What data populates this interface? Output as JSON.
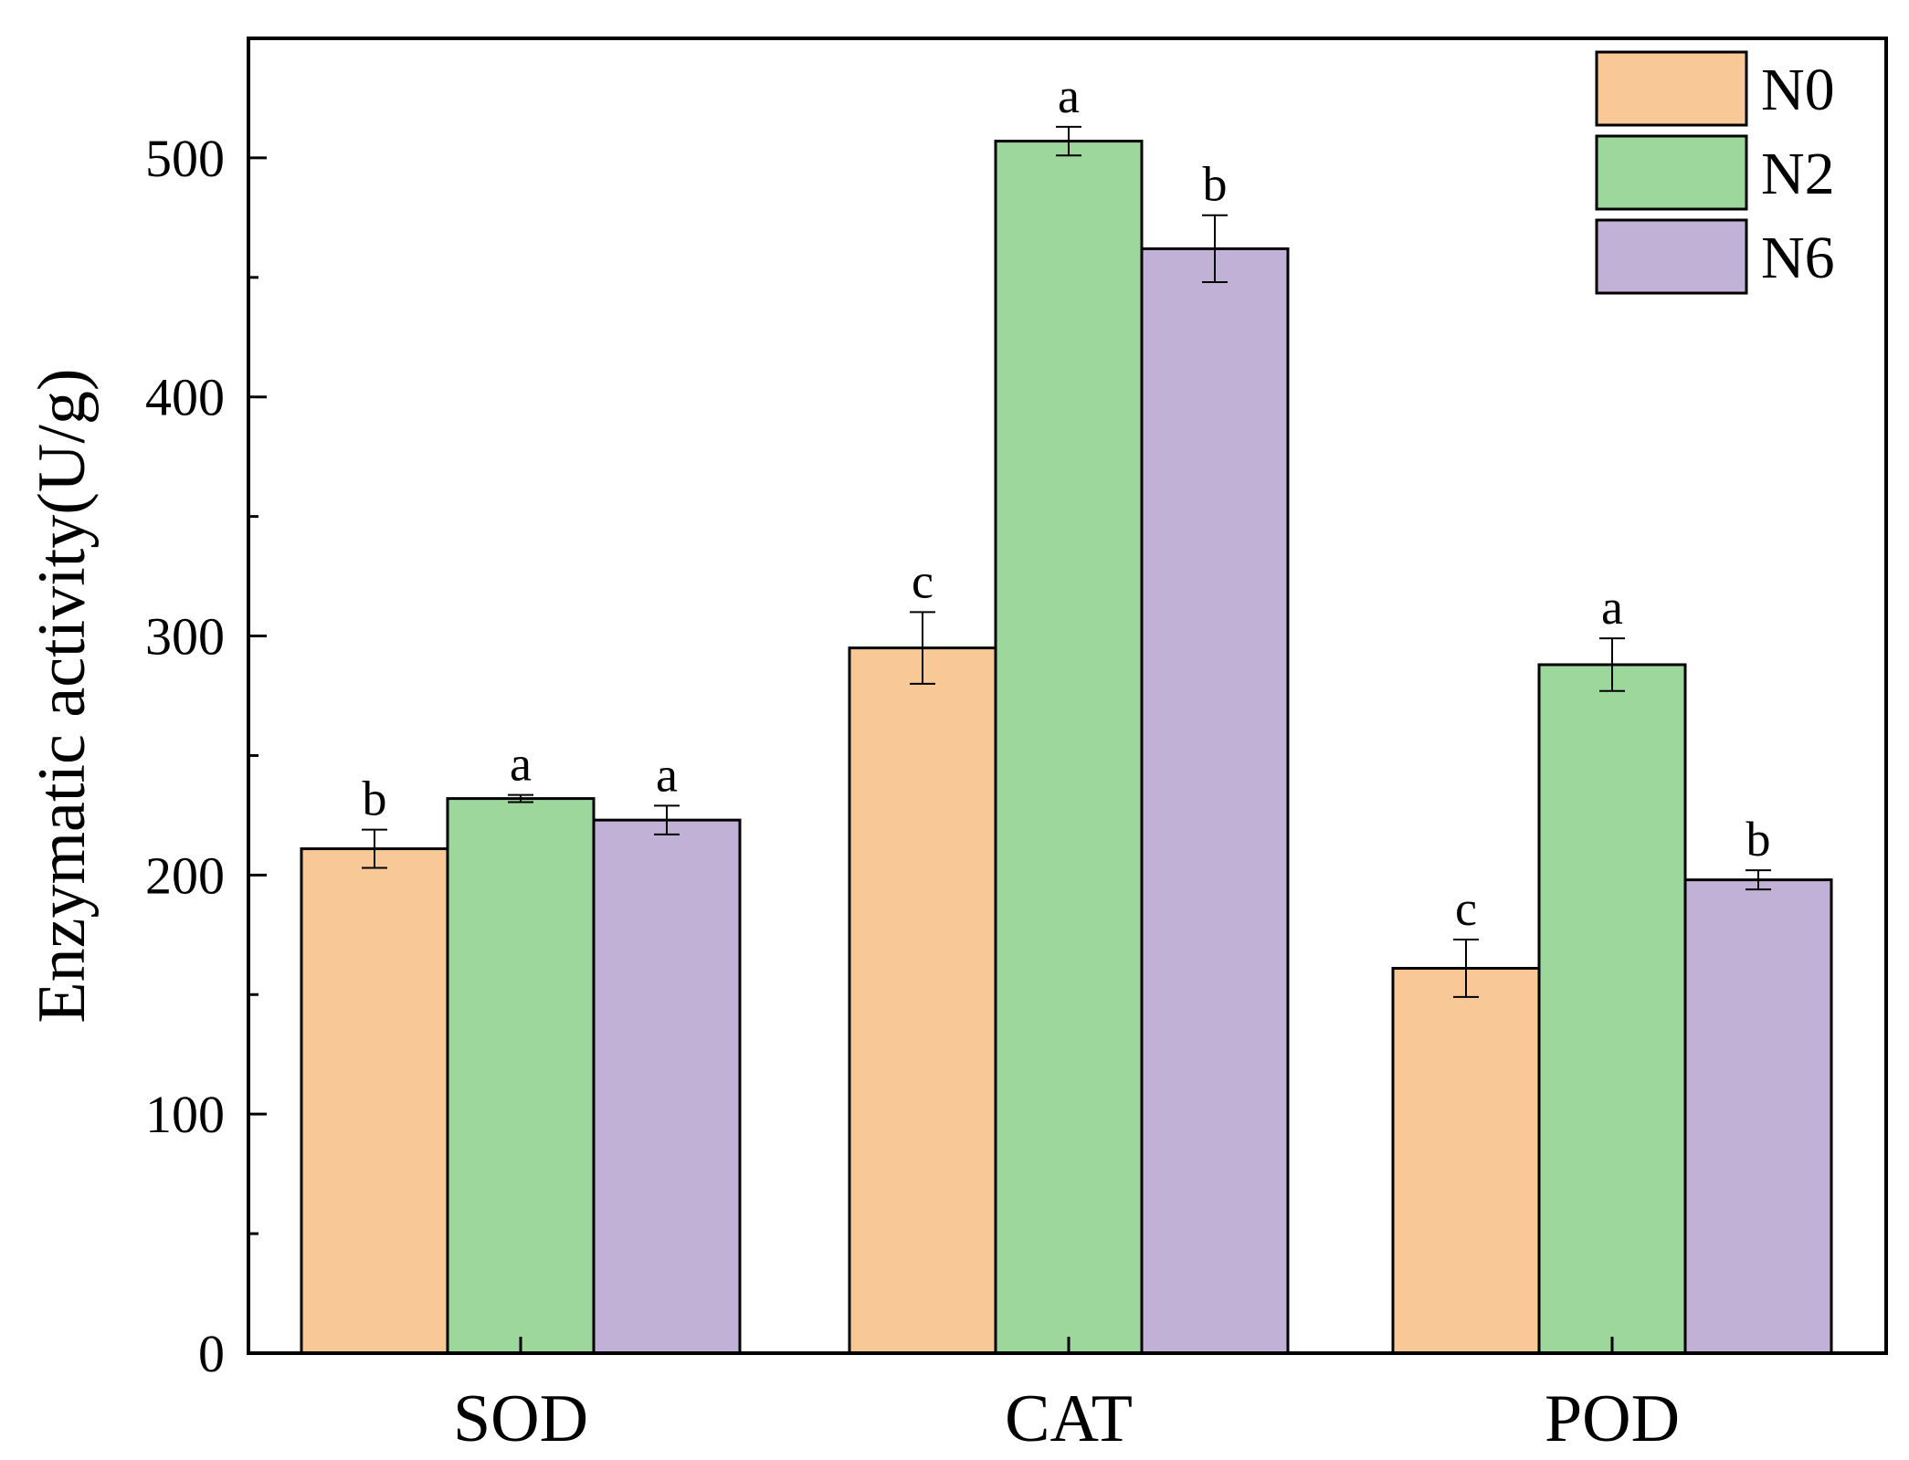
{
  "chart_data": {
    "type": "bar",
    "title": "",
    "xlabel": "",
    "ylabel": "Enzymatic activity(U/g)",
    "ylim": [
      0,
      550
    ],
    "yticks": [
      0,
      100,
      200,
      300,
      400,
      500
    ],
    "y_minor_ticks": [
      50,
      150,
      250,
      350,
      450
    ],
    "categories": [
      "SOD",
      "CAT",
      "POD"
    ],
    "legend_position": "top-right",
    "series": [
      {
        "name": "N0",
        "color": "#F9C897",
        "values": [
          211,
          295,
          161
        ],
        "errors": [
          8,
          15,
          12
        ],
        "labels": [
          "b",
          "c",
          "c"
        ]
      },
      {
        "name": "N2",
        "color": "#9DD79C",
        "values": [
          232,
          507,
          288
        ],
        "errors": [
          1.5,
          6,
          11
        ],
        "labels": [
          "a",
          "a",
          "a"
        ]
      },
      {
        "name": "N6",
        "color": "#C2B1D7",
        "values": [
          223,
          462,
          198
        ],
        "errors": [
          6,
          14,
          4
        ],
        "labels": [
          "a",
          "b",
          "b"
        ]
      }
    ]
  }
}
